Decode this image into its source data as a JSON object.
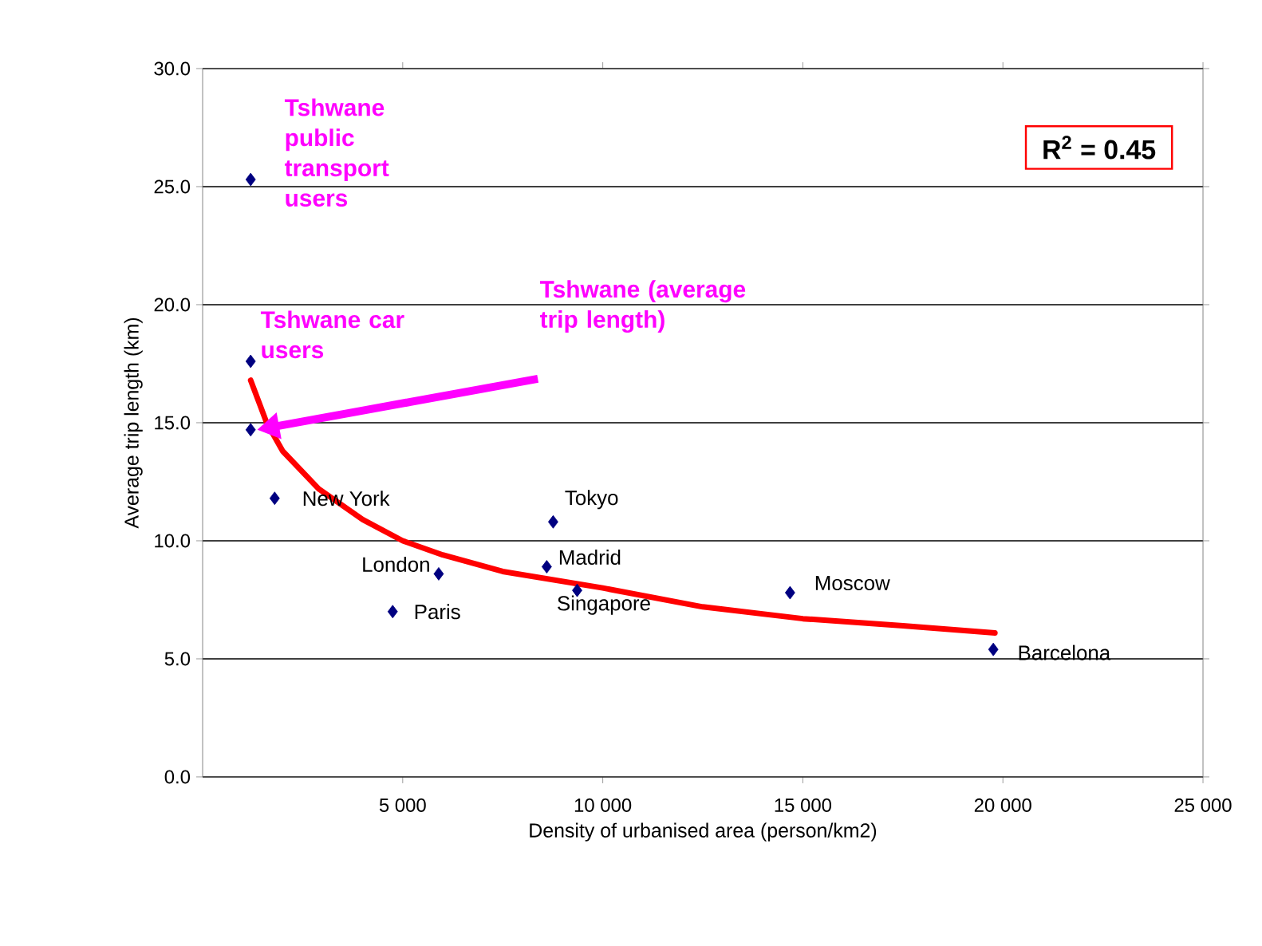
{
  "chart_data": {
    "type": "scatter",
    "xlabel": "Density of urbanised area (person/km2)",
    "ylabel": "Average trip length (km)",
    "xlim": [
      0,
      25000
    ],
    "ylim": [
      0,
      30
    ],
    "xticks": [
      {
        "value": 5000,
        "label": "5 000"
      },
      {
        "value": 10000,
        "label": "10 000"
      },
      {
        "value": 15000,
        "label": "15 000"
      },
      {
        "value": 20000,
        "label": "20 000"
      },
      {
        "value": 25000,
        "label": "25 000"
      }
    ],
    "yticks": [
      {
        "value": 0,
        "label": "0.0"
      },
      {
        "value": 5,
        "label": "5.0"
      },
      {
        "value": 10,
        "label": "10.0"
      },
      {
        "value": 15,
        "label": "15.0"
      },
      {
        "value": 20,
        "label": "20.0"
      },
      {
        "value": 25,
        "label": "25.0"
      },
      {
        "value": 30,
        "label": "30.0"
      }
    ],
    "grid": "y",
    "series": [
      {
        "color": "#000080",
        "marker": "diamond",
        "x": [
          1200,
          1200,
          1200,
          1800,
          5900,
          4750,
          8600,
          8760,
          9360,
          14680,
          19760
        ],
        "values": [
          25.3,
          17.6,
          14.7,
          11.8,
          8.6,
          7.0,
          8.9,
          10.8,
          7.9,
          7.8,
          5.4
        ]
      },
      {
        "type": "line",
        "color": "#ff0000",
        "x": [
          1200,
          1600,
          2000,
          2900,
          4000,
          5000,
          6000,
          7500,
          10000,
          12500,
          15000,
          17500,
          19800
        ],
        "values": [
          16.8,
          15.0,
          13.8,
          12.2,
          10.9,
          10.0,
          9.4,
          8.7,
          8.0,
          7.2,
          6.7,
          6.4,
          6.1
        ]
      }
    ],
    "annotations": [
      "R$^{2}$ = 0.45",
      {
        "text": "Tshwane public transport users",
        "x": 1200,
        "y": 25.3
      },
      {
        "text": "Tshwane car users",
        "x": 1200,
        "y": 17.6
      },
      "Tshwane (average trip length)",
      {
        "text": "New York",
        "x": 1800,
        "y": 11.8
      },
      {
        "text": "London",
        "x": 5900,
        "y": 8.6
      },
      {
        "text": "Paris",
        "x": 4750,
        "y": 7.0
      },
      {
        "text": "Madrid",
        "x": 8600,
        "y": 8.9
      },
      {
        "text": "Tokyo",
        "x": 8760,
        "y": 10.8
      },
      {
        "text": "Singapore",
        "x": 9360,
        "y": 7.9
      },
      {
        "text": "Moscow",
        "x": 14680,
        "y": 7.8
      },
      {
        "text": "Barcelona",
        "x": 19760,
        "y": 5.4
      }
    ]
  }
}
